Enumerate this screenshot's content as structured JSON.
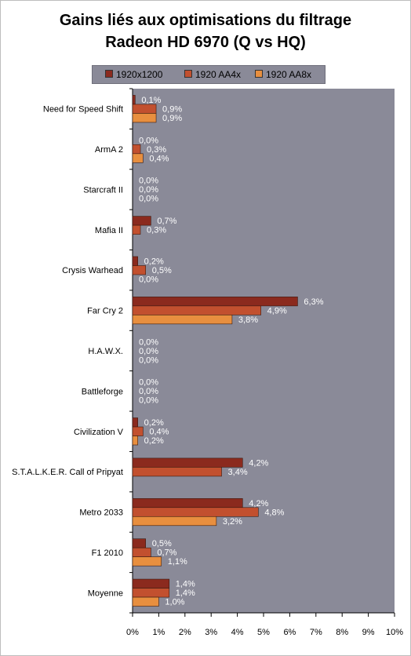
{
  "title_line1": "Gains liés aux optimisations du filtrage",
  "title_line2": "Radeon HD 6970 (Q vs HQ)",
  "colors": {
    "plot_bg": "#8a8a98",
    "series1": "#8b2a1e",
    "series2": "#c2502f",
    "series3": "#e88f3f",
    "label_text": "#ffffff"
  },
  "chart_data": {
    "type": "bar",
    "orientation": "horizontal",
    "title": "Gains liés aux optimisations du filtrage Radeon HD 6970 (Q vs HQ)",
    "categories": [
      "Need for Speed Shift",
      "ArmA 2",
      "Starcraft II",
      "Mafia II",
      "Crysis Warhead",
      "Far Cry 2",
      "H.A.W.X.",
      "Battleforge",
      "Civilization V",
      "S.T.A.L.K.E.R. Call of Pripyat",
      "Metro 2033",
      "F1 2010",
      "Moyenne"
    ],
    "series": [
      {
        "name": "1920x1200",
        "values": [
          0.1,
          0.0,
          0.0,
          0.7,
          0.2,
          6.3,
          0.0,
          0.0,
          0.2,
          4.2,
          4.2,
          0.5,
          1.4
        ],
        "labels": [
          "0,1%",
          "0,0%",
          "0,0%",
          "0,7%",
          "0,2%",
          "6,3%",
          "0,0%",
          "0,0%",
          "0,2%",
          "4,2%",
          "4,2%",
          "0,5%",
          "1,4%"
        ]
      },
      {
        "name": "1920 AA4x",
        "values": [
          0.9,
          0.3,
          0.0,
          0.3,
          0.5,
          4.9,
          0.0,
          0.0,
          0.4,
          3.4,
          4.8,
          0.7,
          1.4
        ],
        "labels": [
          "0,9%",
          "0,3%",
          "0,0%",
          "0,3%",
          "0,5%",
          "4,9%",
          "0,0%",
          "0,0%",
          "0,4%",
          "3,4%",
          "4,8%",
          "0,7%",
          "1,4%"
        ]
      },
      {
        "name": "1920 AA8x",
        "values": [
          0.9,
          0.4,
          0.0,
          null,
          0.0,
          3.8,
          0.0,
          0.0,
          0.2,
          null,
          3.2,
          1.1,
          1.0
        ],
        "labels": [
          "0,9%",
          "0,4%",
          "0,0%",
          null,
          "0,0%",
          "3,8%",
          "0,0%",
          "0,0%",
          "0,2%",
          null,
          "3,2%",
          "1,1%",
          "1,0%"
        ]
      }
    ],
    "xlim": [
      0,
      10
    ],
    "xticks": [
      "0%",
      "1%",
      "2%",
      "3%",
      "4%",
      "5%",
      "6%",
      "7%",
      "8%",
      "9%",
      "10%"
    ],
    "legend_position": "top",
    "grid": false
  }
}
